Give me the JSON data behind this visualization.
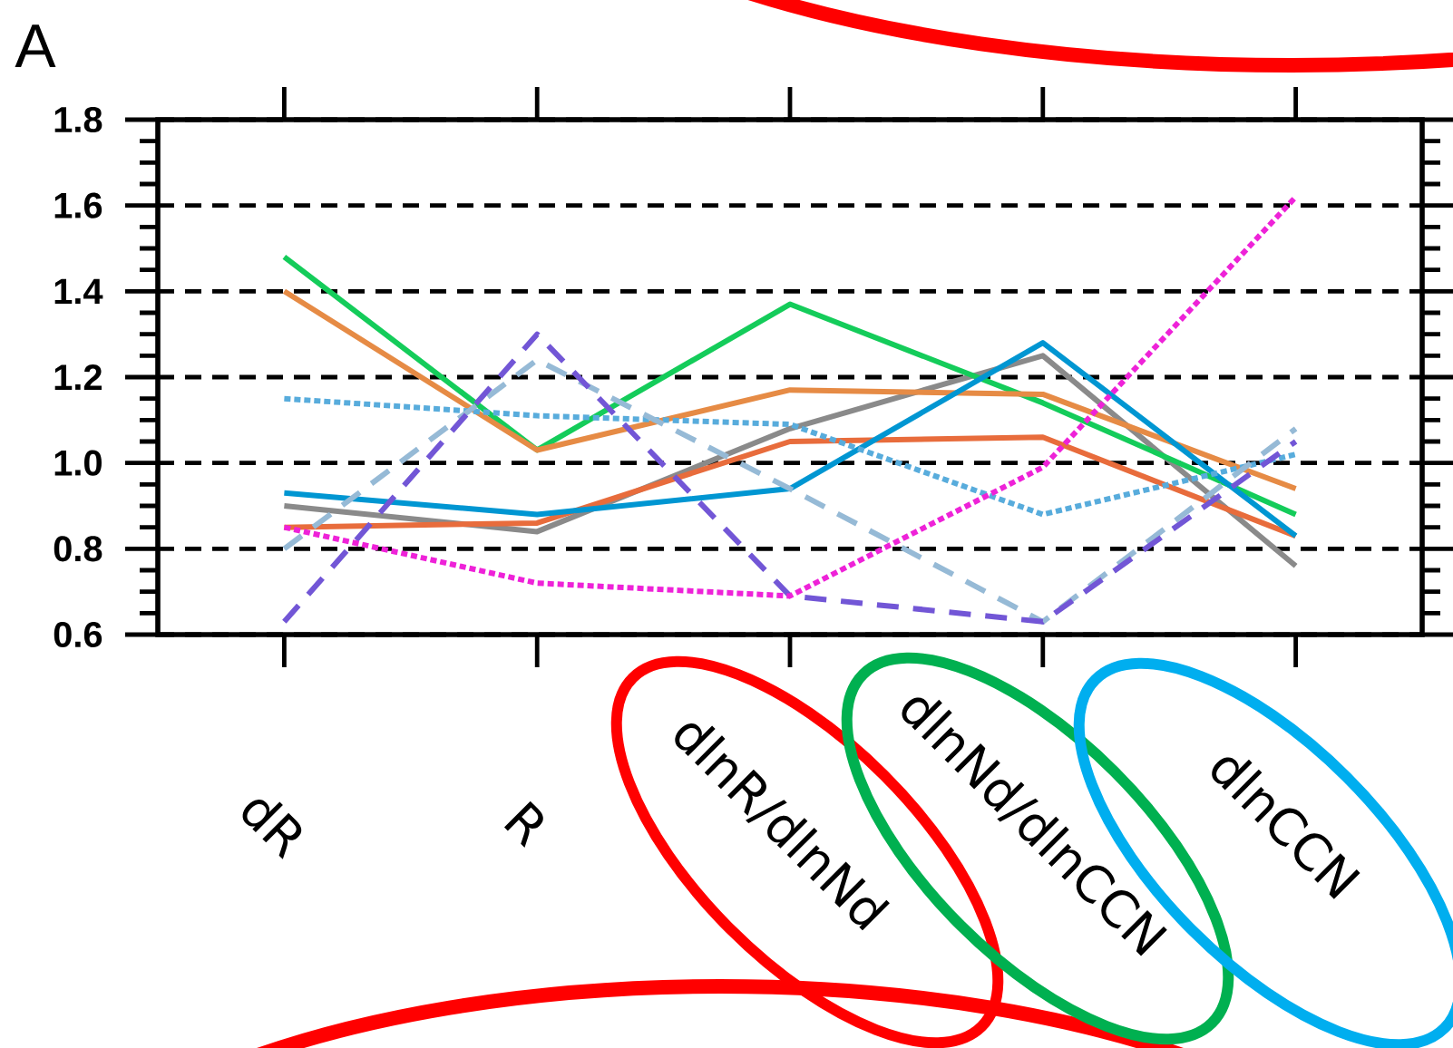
{
  "chart_data": {
    "type": "line",
    "title": "A",
    "categories": [
      "dR",
      "R",
      "dlnR/dlnNd",
      "dlnNd/dlnCCN",
      "dlnCCN"
    ],
    "series": [
      {
        "color": "#8a8a8a",
        "line_style": "solid",
        "values": [
          0.9,
          0.84,
          1.08,
          1.25,
          0.76
        ]
      },
      {
        "color": "#e86c3c",
        "line_style": "solid",
        "values": [
          0.85,
          0.86,
          1.05,
          1.06,
          0.83
        ]
      },
      {
        "color": "#14cc5a",
        "line_style": "solid",
        "values": [
          1.48,
          1.03,
          1.37,
          1.14,
          0.88
        ]
      },
      {
        "color": "#e68b45",
        "line_style": "solid",
        "values": [
          1.4,
          1.03,
          1.17,
          1.16,
          0.94
        ]
      },
      {
        "color": "#0096d2",
        "line_style": "solid",
        "values": [
          0.93,
          0.88,
          0.94,
          1.28,
          0.83
        ]
      },
      {
        "color": "#58acdc",
        "line_style": "dotted",
        "values": [
          1.15,
          1.11,
          1.09,
          0.88,
          1.02
        ]
      },
      {
        "color": "#96bad6",
        "line_style": "dashed",
        "values": [
          0.8,
          1.24,
          0.94,
          0.63,
          1.08
        ]
      },
      {
        "color": "#7256d6",
        "line_style": "dashed",
        "values": [
          0.63,
          1.3,
          0.69,
          0.63,
          1.05
        ]
      },
      {
        "color": "#ee22d8",
        "line_style": "dotted",
        "values": [
          0.85,
          0.72,
          0.69,
          0.99,
          1.62
        ]
      }
    ],
    "ylim": [
      0.6,
      1.8
    ],
    "yticks": [
      0.6,
      0.8,
      {
        "value": 1,
        "label": "1.0"
      },
      1.2,
      1.4,
      1.6,
      1.8
    ],
    "grid": "y"
  }
}
